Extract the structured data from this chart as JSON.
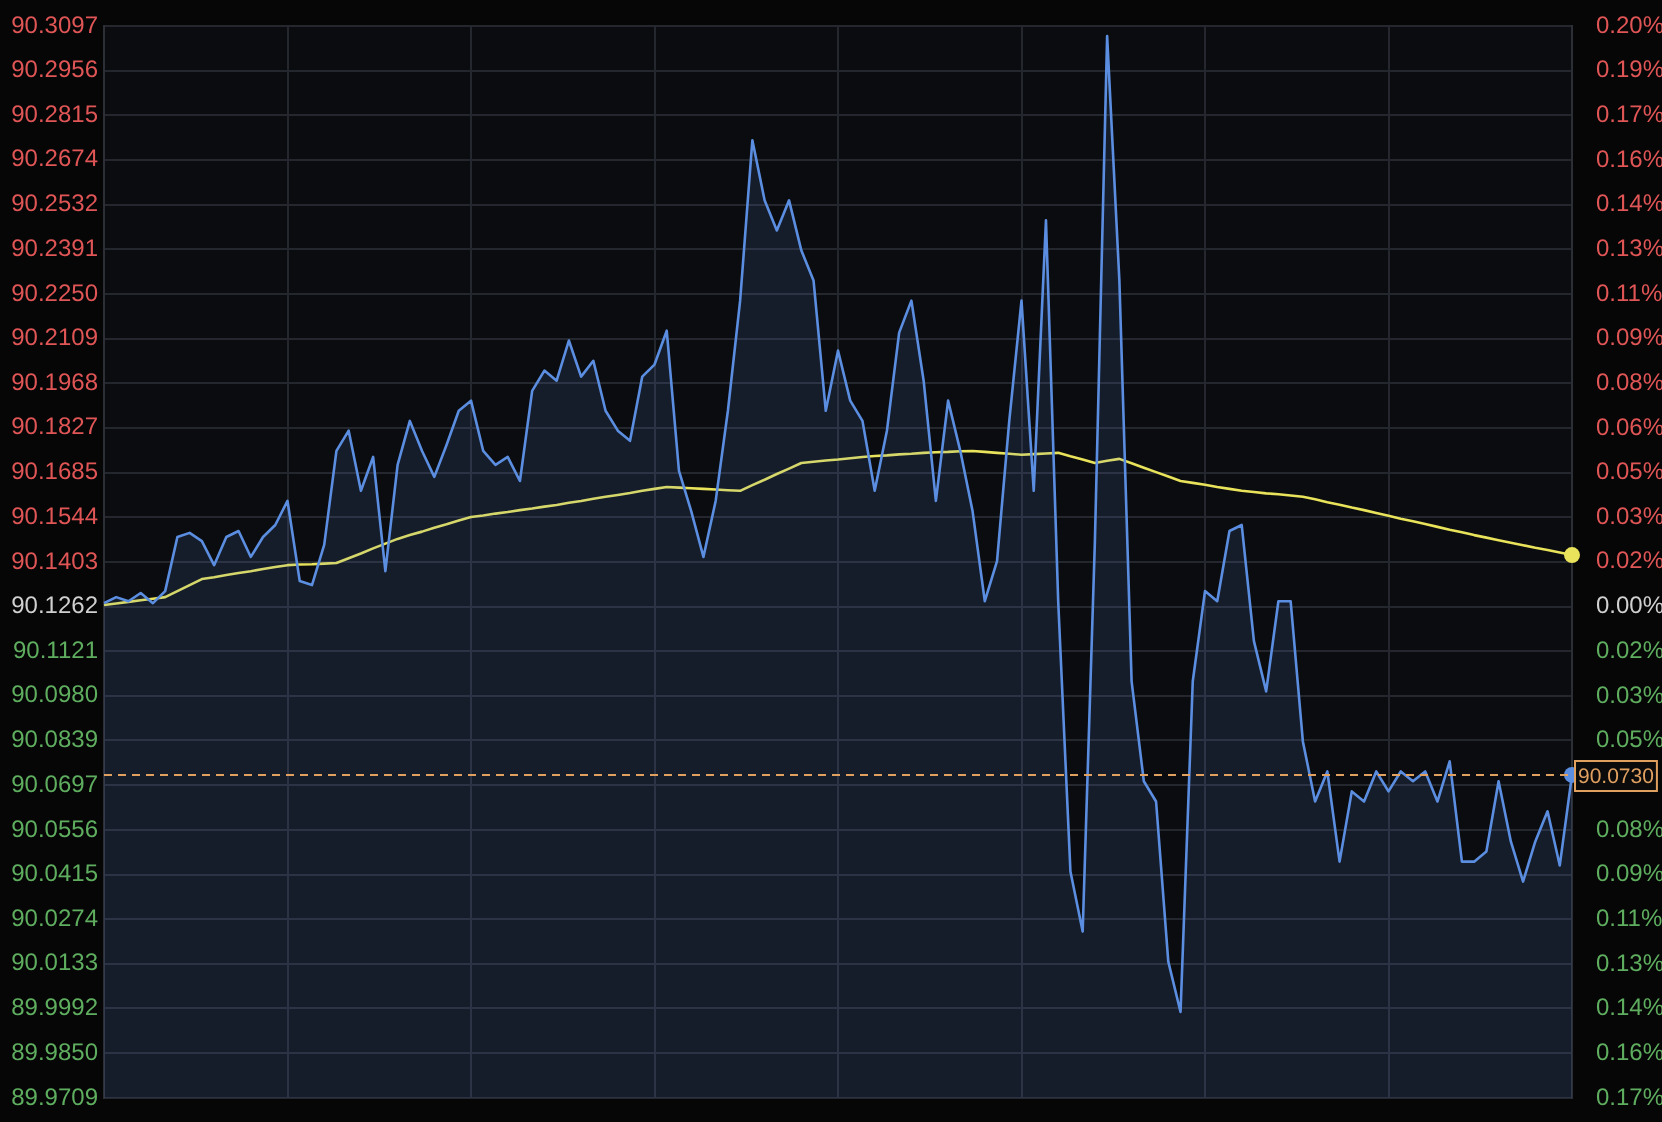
{
  "chart_data": {
    "type": "area",
    "categories": [
      null,
      null,
      null,
      null,
      null,
      null,
      null,
      null,
      null,
      null,
      null,
      null,
      null,
      null,
      null,
      null,
      null,
      null,
      null,
      null,
      null,
      null,
      null,
      null,
      null,
      null,
      null,
      null,
      null,
      null,
      null,
      null,
      null,
      null,
      null,
      null,
      null,
      null,
      null,
      null,
      null,
      null,
      null,
      null,
      null,
      null,
      null,
      null,
      null,
      null,
      null,
      null,
      null,
      null,
      null,
      null,
      null,
      null,
      null,
      null,
      null,
      null,
      null,
      null,
      null,
      null,
      null,
      null,
      null,
      null,
      null,
      null,
      null,
      null,
      null,
      null,
      null,
      null,
      null,
      null,
      null,
      null,
      null,
      null,
      null,
      null,
      null,
      null,
      null,
      null,
      null,
      null,
      null,
      null,
      null,
      null,
      null,
      null,
      null,
      null,
      null,
      null,
      null,
      null,
      null,
      null,
      null,
      null,
      null,
      null,
      null,
      null,
      null,
      null,
      null,
      null,
      null,
      null,
      null,
      null,
      null
    ],
    "series": [
      {
        "type": "area",
        "color": "#5b8ee0",
        "values": [
          90.1273,
          90.1292,
          90.1279,
          90.1305,
          90.1273,
          90.1311,
          90.1482,
          90.1495,
          90.1469,
          90.1393,
          90.1482,
          90.1501,
          90.1419,
          90.1482,
          90.152,
          90.1596,
          90.1343,
          90.133,
          90.1457,
          90.1754,
          90.1818,
          90.1628,
          90.1735,
          90.1374,
          90.171,
          90.1849,
          90.1754,
          90.1672,
          90.1773,
          90.1881,
          90.1913,
          90.1754,
          90.171,
          90.1735,
          90.1659,
          90.1944,
          90.2008,
          90.1976,
          90.2103,
          90.1989,
          90.2039,
          90.1881,
          90.1818,
          90.1786,
          90.1989,
          90.2027,
          90.2134,
          90.1691,
          90.1564,
          90.1419,
          90.1596,
          90.1881,
          90.2229,
          90.2736,
          90.2546,
          90.2451,
          90.2546,
          90.2388,
          90.2293,
          90.1881,
          90.2071,
          90.1913,
          90.1849,
          90.1628,
          90.1818,
          90.2128,
          90.2229,
          90.1976,
          90.1596,
          90.1913,
          90.1754,
          90.1564,
          90.1279,
          90.1406,
          90.1849,
          90.2229,
          90.1628,
          90.2483,
          90.1279,
          90.0425,
          90.0235,
          90.1469,
          90.3065,
          90.2293,
          90.1026,
          90.071,
          90.0646,
          90.014,
          89.9981,
          90.1026,
          90.1311,
          90.1279,
          90.1501,
          90.152,
          90.1153,
          90.0994,
          90.1279,
          90.1279,
          90.0836,
          90.0646,
          90.0741,
          90.0456,
          90.0678,
          90.0646,
          90.0741,
          90.0678,
          90.0741,
          90.071,
          90.0741,
          90.0646,
          90.0773,
          90.0456,
          90.0456,
          90.0488,
          90.071,
          90.052,
          90.0393,
          90.052,
          90.0615,
          90.0444,
          90.073
        ]
      },
      {
        "type": "line",
        "color": "#e8e35a",
        "values": [
          90.1267,
          90.1272,
          90.1277,
          90.1282,
          90.1287,
          90.1292,
          90.1311,
          90.133,
          90.1349,
          90.1355,
          90.1362,
          90.1368,
          90.1374,
          90.1381,
          90.1387,
          90.1393,
          90.1395,
          90.1396,
          90.1398,
          90.14,
          90.1415,
          90.143,
          90.1446,
          90.1461,
          90.1476,
          90.1488,
          90.1499,
          90.1511,
          90.1522,
          90.1534,
          90.1545,
          90.155,
          90.1556,
          90.1561,
          90.1567,
          90.1572,
          90.1578,
          90.1583,
          90.159,
          90.1596,
          90.1603,
          90.1609,
          90.1615,
          90.1621,
          90.1628,
          90.1634,
          90.164,
          90.1638,
          90.1636,
          90.1634,
          90.1632,
          90.163,
          90.1628,
          90.1646,
          90.1663,
          90.1681,
          90.1698,
          90.1716,
          90.172,
          90.1724,
          90.1727,
          90.1731,
          90.1735,
          90.1738,
          90.174,
          90.1743,
          90.1745,
          90.1748,
          90.175,
          90.1751,
          90.1753,
          90.1754,
          90.1751,
          90.1748,
          90.1745,
          90.1742,
          90.1744,
          90.1746,
          90.1748,
          90.1737,
          90.1727,
          90.1716,
          90.1723,
          90.1729,
          90.1715,
          90.1701,
          90.1687,
          90.1673,
          90.1659,
          90.1653,
          90.1647,
          90.164,
          90.1634,
          90.1628,
          90.1624,
          90.162,
          90.1617,
          90.1613,
          90.1609,
          90.1601,
          90.1592,
          90.1584,
          90.1575,
          90.1567,
          90.1558,
          90.1549,
          90.154,
          90.1532,
          90.1523,
          90.1514,
          90.1505,
          90.1497,
          90.1488,
          90.148,
          90.1472,
          90.1464,
          90.1456,
          90.1448,
          90.1441,
          90.1433,
          90.1425
        ]
      }
    ],
    "ylim": [
      89.9709,
      90.3097
    ],
    "yticks": [
      90.3097,
      90.2956,
      90.2815,
      90.2674,
      90.2532,
      90.2391,
      {
        "value": 90.225,
        "label": "90.2250"
      },
      90.2109,
      90.1968,
      90.1827,
      90.1685,
      90.1544,
      90.1403,
      90.1262,
      90.1121,
      {
        "value": 90.098,
        "label": "90.0980"
      },
      90.0839,
      90.0697,
      90.0556,
      90.0415,
      90.0274,
      90.0133,
      89.9992,
      {
        "value": 89.985,
        "label": "89.9850"
      },
      89.9709
    ],
    "y2lim": [
      -0.1723,
      0.2036
    ],
    "y2ticks": [
      {
        "value": 0.2036,
        "label": "0.20%"
      },
      {
        "value": 0.1879,
        "label": "0.19%"
      },
      {
        "value": 0.1723,
        "label": "0.17%"
      },
      {
        "value": 0.1566,
        "label": "0.16%"
      },
      {
        "value": 0.1409,
        "label": "0.14%"
      },
      {
        "value": 0.1253,
        "label": "0.13%"
      },
      {
        "value": 0.1096,
        "label": "0.11%"
      },
      {
        "value": 0.094,
        "label": "0.09%"
      },
      {
        "value": 0.0783,
        "label": "0.08%"
      },
      {
        "value": 0.0626,
        "label": "0.06%"
      },
      {
        "value": 0.047,
        "label": "0.05%"
      },
      {
        "value": 0.0313,
        "label": "0.03%"
      },
      {
        "value": 0.0157,
        "label": "0.02%"
      },
      {
        "value": 0,
        "label": "0.00%"
      },
      {
        "value": -0.0157,
        "label": "0.02%"
      },
      {
        "value": -0.0313,
        "label": "0.03%"
      },
      {
        "value": -0.047,
        "label": "0.05%"
      },
      {
        "value": -0.0626,
        "label": null
      },
      {
        "value": -0.0783,
        "label": "0.08%"
      },
      {
        "value": -0.094,
        "label": "0.09%"
      },
      {
        "value": -0.1096,
        "label": "0.11%"
      },
      {
        "value": -0.1253,
        "label": "0.13%"
      },
      {
        "value": -0.1409,
        "label": "0.14%"
      },
      {
        "value": -0.1566,
        "label": "0.16%"
      },
      {
        "value": -0.1723,
        "label": "0.17%"
      }
    ],
    "ref_lines": [
      {
        "axis": "y",
        "value": 90.073,
        "label": "90.0730",
        "color": "#e0a060",
        "line_style": "dashed"
      }
    ],
    "grid": true,
    "tick_labels": "y"
  }
}
